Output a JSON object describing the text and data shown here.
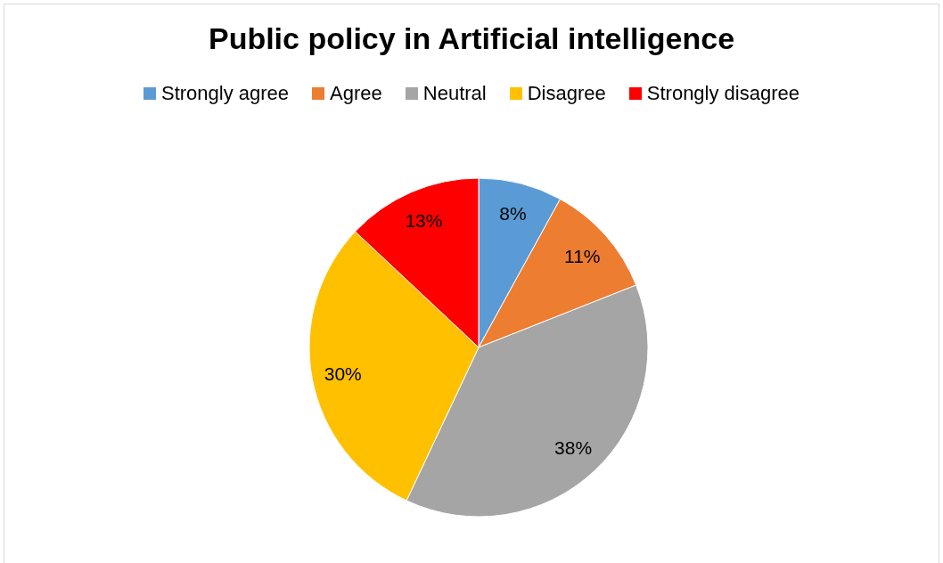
{
  "chart_data": {
    "type": "pie",
    "title": "Public policy in Artificial intelligence",
    "categories": [
      "Strongly agree",
      "Agree",
      "Neutral",
      "Disagree",
      "Strongly disagree"
    ],
    "values": [
      8,
      11,
      38,
      30,
      13
    ],
    "colors": [
      "#5b9bd5",
      "#ed7d31",
      "#a5a5a5",
      "#ffc000",
      "#ff0000"
    ],
    "value_labels": [
      "8%",
      "11%",
      "38%",
      "30%",
      "13%"
    ],
    "legend": "top"
  }
}
